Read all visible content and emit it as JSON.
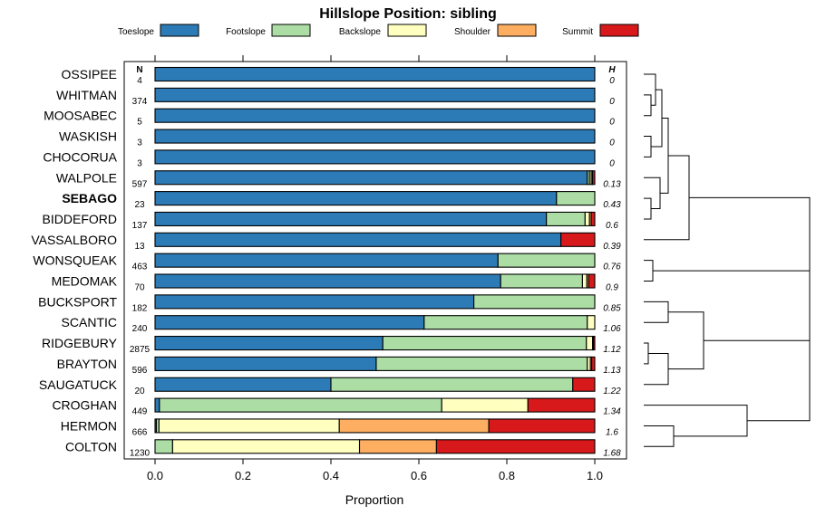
{
  "chart_data": {
    "type": "bar",
    "orientation": "horizontal",
    "stacked": true,
    "title": "Hillslope Position: sibling",
    "xlabel": "Proportion",
    "xlim": [
      0,
      1
    ],
    "x_ticks": [
      "0.0",
      "0.2",
      "0.4",
      "0.6",
      "0.8",
      "1.0"
    ],
    "x_tick_values": [
      0,
      0.2,
      0.4,
      0.6,
      0.8,
      1.0
    ],
    "n_header": "N",
    "h_header": "H",
    "legend": [
      {
        "name": "Toeslope",
        "color": "#2c7bb6"
      },
      {
        "name": "Footslope",
        "color": "#abdda4"
      },
      {
        "name": "Backslope",
        "color": "#ffffbf"
      },
      {
        "name": "Shoulder",
        "color": "#fdae61"
      },
      {
        "name": "Summit",
        "color": "#d7191c"
      }
    ],
    "rows": [
      {
        "label": "OSSIPEE",
        "n": "4",
        "h": "0",
        "values": [
          1.0,
          0,
          0,
          0,
          0
        ]
      },
      {
        "label": "WHITMAN",
        "n": "374",
        "h": "0",
        "values": [
          1.0,
          0,
          0,
          0,
          0
        ]
      },
      {
        "label": "MOOSABEC",
        "n": "5",
        "h": "0",
        "values": [
          1.0,
          0,
          0,
          0,
          0
        ]
      },
      {
        "label": "WASKISH",
        "n": "3",
        "h": "0",
        "values": [
          1.0,
          0,
          0,
          0,
          0
        ]
      },
      {
        "label": "CHOCORUA",
        "n": "3",
        "h": "0",
        "values": [
          1.0,
          0,
          0,
          0,
          0
        ]
      },
      {
        "label": "WALPOLE",
        "n": "597",
        "h": "0.13",
        "values": [
          0.983,
          0.005,
          0.004,
          0.003,
          0.005
        ]
      },
      {
        "label": "SEBAGO",
        "n": "23",
        "h": "0.43",
        "values": [
          0.913,
          0.087,
          0,
          0,
          0
        ],
        "bold": true
      },
      {
        "label": "BIDDEFORD",
        "n": "137",
        "h": "0.6",
        "values": [
          0.89,
          0.088,
          0.01,
          0.004,
          0.008
        ]
      },
      {
        "label": "VASSALBORO",
        "n": "13",
        "h": "0.39",
        "values": [
          0.923,
          0,
          0,
          0,
          0.077
        ]
      },
      {
        "label": "WONSQUEAK",
        "n": "463",
        "h": "0.76",
        "values": [
          0.78,
          0.22,
          0,
          0,
          0
        ]
      },
      {
        "label": "MEDOMAK",
        "n": "70",
        "h": "0.9",
        "values": [
          0.786,
          0.186,
          0.01,
          0.004,
          0.014
        ]
      },
      {
        "label": "BUCKSPORT",
        "n": "182",
        "h": "0.85",
        "values": [
          0.725,
          0.275,
          0,
          0,
          0
        ]
      },
      {
        "label": "SCANTIC",
        "n": "240",
        "h": "1.06",
        "values": [
          0.612,
          0.371,
          0.017,
          0,
          0
        ]
      },
      {
        "label": "RIDGEBURY",
        "n": "2875",
        "h": "1.12",
        "values": [
          0.518,
          0.463,
          0.014,
          0.002,
          0.003
        ]
      },
      {
        "label": "BRAYTON",
        "n": "596",
        "h": "1.13",
        "values": [
          0.503,
          0.48,
          0.007,
          0.003,
          0.007
        ]
      },
      {
        "label": "SAUGATUCK",
        "n": "20",
        "h": "1.22",
        "values": [
          0.4,
          0.55,
          0,
          0,
          0.05
        ]
      },
      {
        "label": "CROGHAN",
        "n": "449",
        "h": "1.34",
        "values": [
          0.01,
          0.642,
          0.196,
          0,
          0.152
        ]
      },
      {
        "label": "HERMON",
        "n": "666",
        "h": "1.6",
        "values": [
          0.003,
          0.006,
          0.41,
          0.34,
          0.241
        ]
      },
      {
        "label": "COLTON",
        "n": "1230",
        "h": "1.68",
        "values": [
          0,
          0.04,
          0.425,
          0.175,
          0.36
        ]
      }
    ],
    "dendrogram": "hierarchical clustering of the 19 siblings by hillslope position proportions"
  }
}
